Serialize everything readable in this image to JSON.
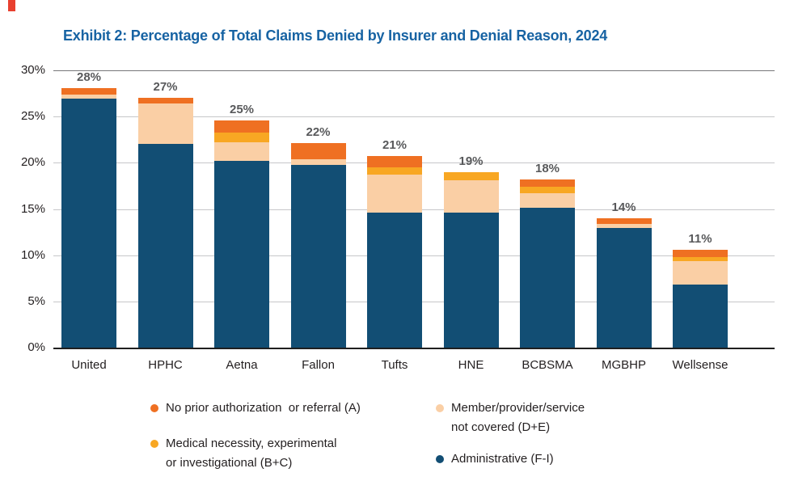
{
  "title": "Exhibit 2: Percentage of Total Claims Denied by Insurer and Denial Reason, 2024",
  "colors": {
    "title_blue": "#1763A3",
    "administrative": "#124E74",
    "not_covered": "#FACFA5",
    "medical_necessity": "#F8A723",
    "no_prior_auth": "#EF7022",
    "total_label_gray": "#58595B",
    "gridline_gray": "#C6C7C9"
  },
  "chart_data": {
    "type": "bar",
    "stacked": true,
    "title": "Exhibit 2: Percentage of Total Claims Denied by Insurer and Denial Reason, 2024",
    "categories": [
      "United",
      "HPHC",
      "Aetna",
      "Fallon",
      "Tufts",
      "HNE",
      "BCBSMA",
      "MGBHP",
      "Wellsense"
    ],
    "total_labels": [
      "28%",
      "27%",
      "25%",
      "22%",
      "21%",
      "19%",
      "18%",
      "14%",
      "11%"
    ],
    "series": [
      {
        "name": "Administrative (F-I)",
        "color": "#124E74",
        "values": [
          26.9,
          22.0,
          20.2,
          19.8,
          14.6,
          14.6,
          15.1,
          12.9,
          6.8
        ]
      },
      {
        "name": "Member/provider/service not covered (D+E)",
        "color": "#FACFA5",
        "values": [
          0.5,
          4.4,
          2.0,
          0.6,
          4.1,
          3.5,
          1.6,
          0.5,
          2.6
        ]
      },
      {
        "name": "Medical necessity, experimental or investigational (B+C)",
        "color": "#F8A723",
        "values": [
          0,
          0,
          1.1,
          0,
          0.8,
          0.9,
          0.7,
          0,
          0.4
        ]
      },
      {
        "name": "No prior authorization or referral (A)",
        "color": "#EF7022",
        "values": [
          0.7,
          0.6,
          1.3,
          1.7,
          1.2,
          0,
          0.8,
          0.6,
          0.8
        ]
      }
    ],
    "xlabel": "",
    "ylabel": "",
    "ylim": [
      0,
      30
    ],
    "y_ticks": [
      "30%",
      "25%",
      "20%",
      "15%",
      "10%",
      "5%",
      "0%"
    ],
    "grid": true,
    "legend_position": "bottom"
  },
  "legend": {
    "items": [
      {
        "id": "a",
        "line1": "No prior authorization  or referral (A)",
        "line2": "",
        "color": "#EF7022"
      },
      {
        "id": "bc",
        "line1": "Medical necessity, experimental",
        "line2": "or investigational (B+C)",
        "color": "#F8A723"
      },
      {
        "id": "de",
        "line1": "Member/provider/service",
        "line2": "not covered (D+E)",
        "color": "#FACFA5"
      },
      {
        "id": "admin",
        "line1": "Administrative (F-I)",
        "line2": "",
        "color": "#124E74"
      }
    ]
  }
}
